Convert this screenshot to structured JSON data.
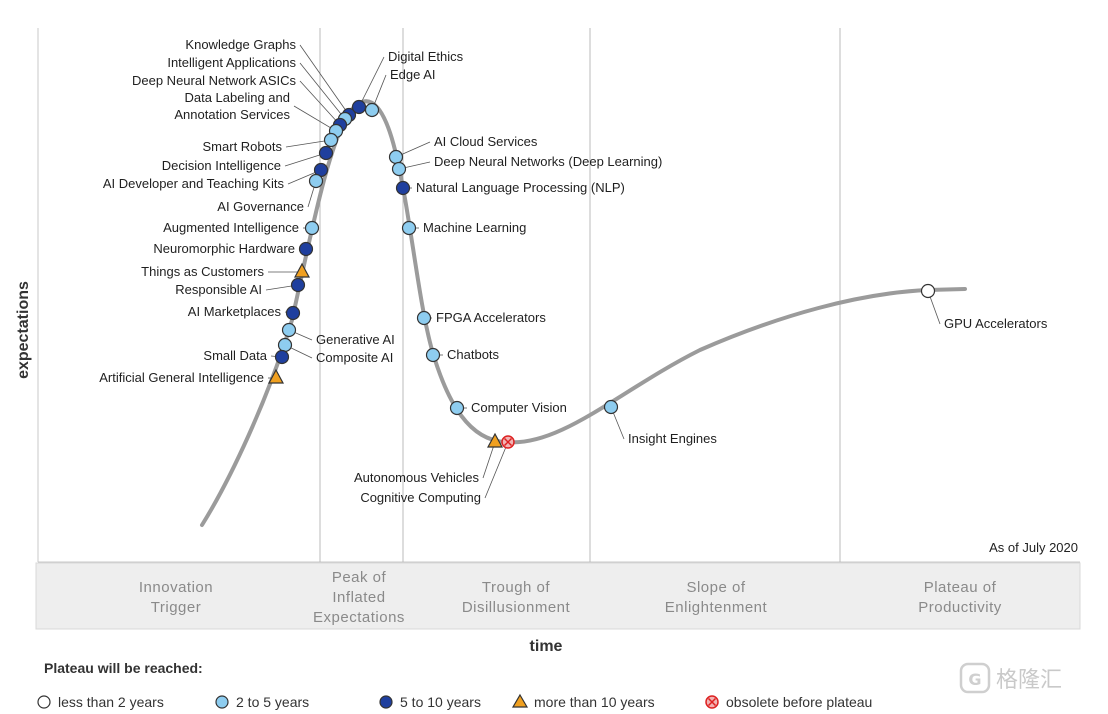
{
  "chart_data": {
    "type": "hype-cycle",
    "ylabel": "expectations",
    "xlabel": "time",
    "as_of": "As of July 2020",
    "phases": [
      "Innovation\nTrigger",
      "Peak of\nInflated\nExpectations",
      "Trough of\nDisillusionment",
      "Slope of\nEnlightenment",
      "Plateau of\nProductivity"
    ],
    "legend": {
      "title": "Plateau will be reached:",
      "items": [
        {
          "key": "lt2",
          "label": "less than 2 years"
        },
        {
          "key": "2to5",
          "label": "2 to 5 years"
        },
        {
          "key": "5to10",
          "label": "5 to 10 years"
        },
        {
          "key": "gt10",
          "label": "more than 10 years"
        },
        {
          "key": "obs",
          "label": "obsolete before plateau"
        }
      ]
    },
    "colors": {
      "lt2": "#ffffff",
      "2to5": "#8ecdf0",
      "5to10": "#1f3f9e",
      "gt10": "#f0a020",
      "obs": "#f2b3b3",
      "curve": "#9b9b9b"
    },
    "technologies": [
      {
        "name": "Knowledge Graphs",
        "category": "5to10"
      },
      {
        "name": "Intelligent Applications",
        "category": "2to5"
      },
      {
        "name": "Deep Neural Network ASICs",
        "category": "5to10"
      },
      {
        "name": "Data Labeling and\nAnnotation Services",
        "category": "2to5"
      },
      {
        "name": "Smart Robots",
        "category": "2to5"
      },
      {
        "name": "Decision Intelligence",
        "category": "5to10"
      },
      {
        "name": "AI Developer and Teaching Kits",
        "category": "5to10"
      },
      {
        "name": "AI Governance",
        "category": "2to5"
      },
      {
        "name": "Augmented Intelligence",
        "category": "2to5"
      },
      {
        "name": "Neuromorphic Hardware",
        "category": "5to10"
      },
      {
        "name": "Things as Customers",
        "category": "gt10"
      },
      {
        "name": "Responsible AI",
        "category": "5to10"
      },
      {
        "name": "AI Marketplaces",
        "category": "5to10"
      },
      {
        "name": "Generative AI",
        "category": "2to5"
      },
      {
        "name": "Composite AI",
        "category": "2to5"
      },
      {
        "name": "Small Data",
        "category": "5to10"
      },
      {
        "name": "Artificial General Intelligence",
        "category": "gt10"
      },
      {
        "name": "Digital Ethics",
        "category": "5to10"
      },
      {
        "name": "Edge AI",
        "category": "2to5"
      },
      {
        "name": "AI Cloud Services",
        "category": "2to5"
      },
      {
        "name": "Deep Neural Networks (Deep Learning)",
        "category": "2to5"
      },
      {
        "name": "Natural Language Processing (NLP)",
        "category": "5to10"
      },
      {
        "name": "Machine Learning",
        "category": "2to5"
      },
      {
        "name": "FPGA Accelerators",
        "category": "2to5"
      },
      {
        "name": "Chatbots",
        "category": "2to5"
      },
      {
        "name": "Computer Vision",
        "category": "2to5"
      },
      {
        "name": "Autonomous Vehicles",
        "category": "gt10"
      },
      {
        "name": "Cognitive Computing",
        "category": "obs"
      },
      {
        "name": "Insight Engines",
        "category": "2to5"
      },
      {
        "name": "GPU Accelerators",
        "category": "lt2"
      }
    ]
  },
  "watermark": "格隆汇"
}
